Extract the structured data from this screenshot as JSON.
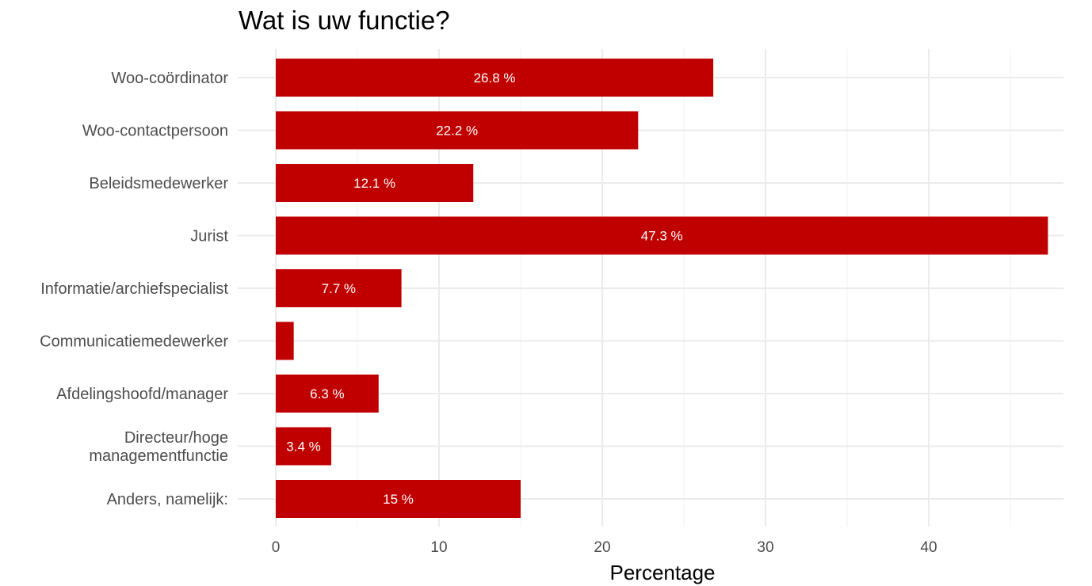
{
  "chart_data": {
    "type": "bar",
    "orientation": "horizontal",
    "title": "Wat is uw functie?",
    "xlabel": "Percentage",
    "ylabel": "",
    "xlim": [
      0,
      48
    ],
    "x_ticks": [
      0,
      10,
      20,
      30,
      40
    ],
    "grid": true,
    "bar_color": "#c00000",
    "categories": [
      [
        "Woo-coördinator"
      ],
      [
        "Woo-contactpersoon"
      ],
      [
        "Beleidsmedewerker"
      ],
      [
        "Jurist"
      ],
      [
        "Informatie/archiefspecialist"
      ],
      [
        "Communicatiemedewerker"
      ],
      [
        "Afdelingshoofd/manager"
      ],
      [
        "Directeur/hoge",
        "managementfunctie"
      ],
      [
        "Anders, namelijk:"
      ]
    ],
    "values": [
      26.8,
      22.2,
      12.1,
      47.3,
      7.7,
      1.1,
      6.3,
      3.4,
      15
    ],
    "data_labels": [
      "26.8 %",
      "22.2 %",
      "12.1 %",
      "47.3 %",
      "7.7 %",
      "",
      "6.3 %",
      "3.4 %",
      "15 %"
    ]
  }
}
